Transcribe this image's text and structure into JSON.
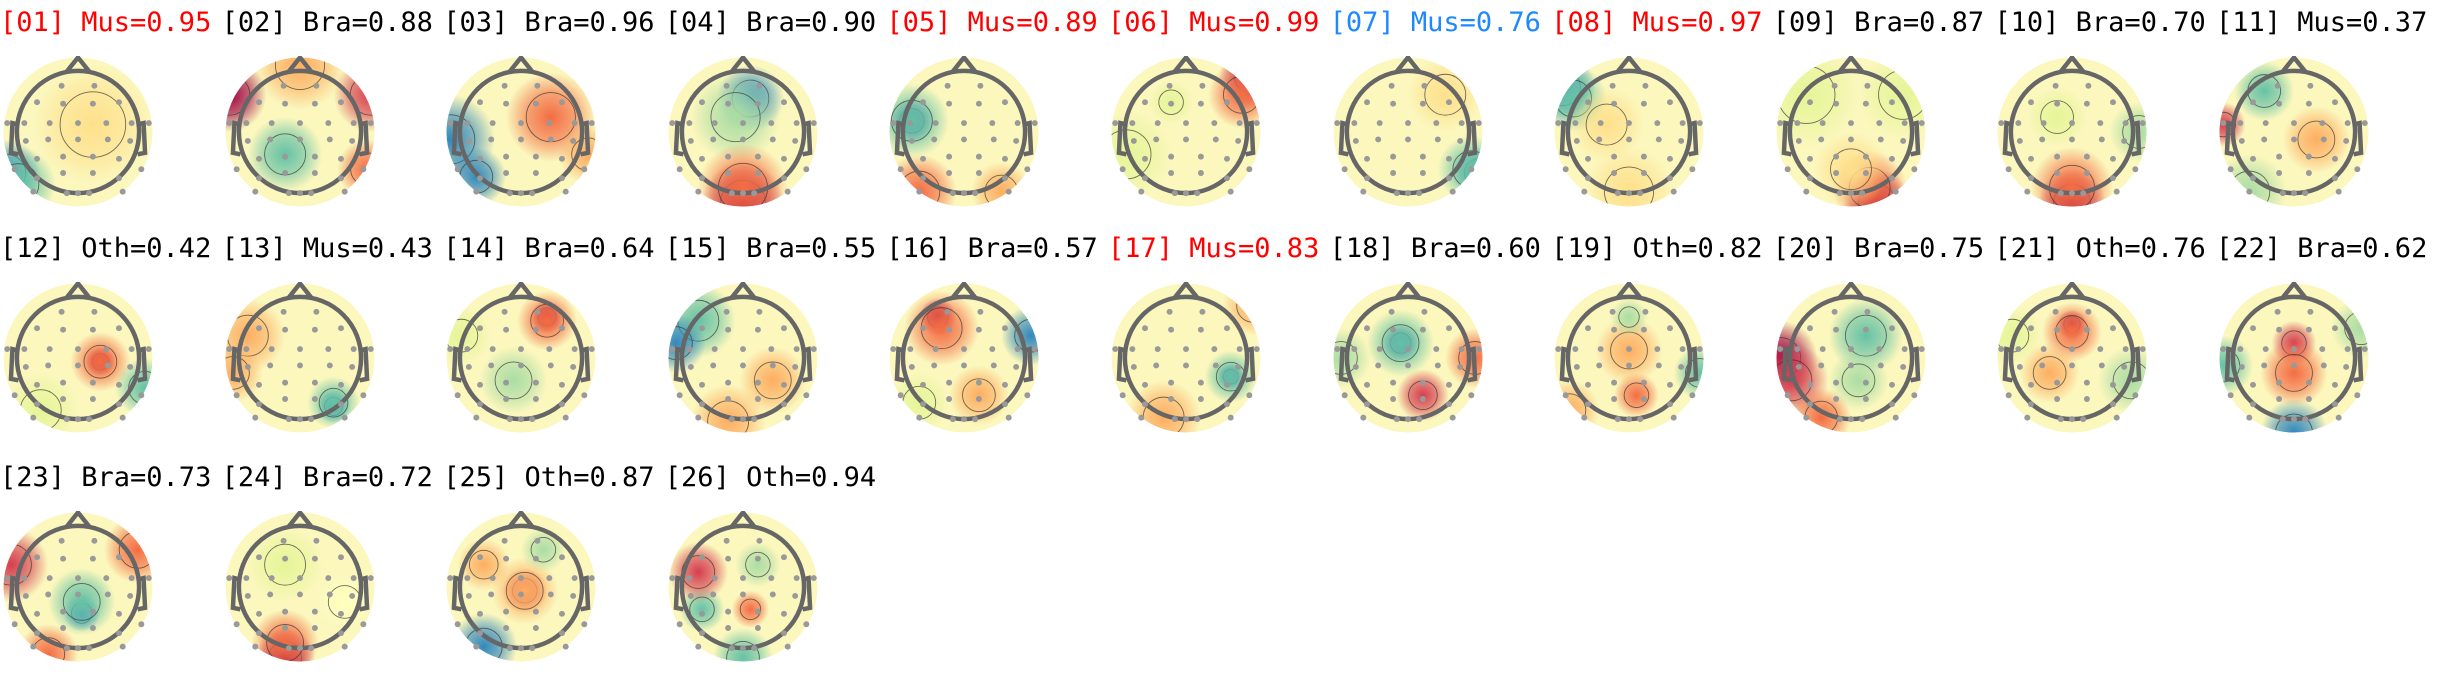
{
  "chart_data": {
    "type": "heatmap",
    "colormap": "Spectral",
    "components": [
      {
        "index": "01",
        "label": "Mus",
        "score": 0.95,
        "color": "#ff0000"
      },
      {
        "index": "02",
        "label": "Bra",
        "score": 0.88,
        "color": "#000000"
      },
      {
        "index": "03",
        "label": "Bra",
        "score": 0.96,
        "color": "#000000"
      },
      {
        "index": "04",
        "label": "Bra",
        "score": 0.9,
        "color": "#000000"
      },
      {
        "index": "05",
        "label": "Mus",
        "score": 0.89,
        "color": "#ff0000"
      },
      {
        "index": "06",
        "label": "Mus",
        "score": 0.99,
        "color": "#ff0000"
      },
      {
        "index": "07",
        "label": "Mus",
        "score": 0.76,
        "color": "#1e88ff"
      },
      {
        "index": "08",
        "label": "Mus",
        "score": 0.97,
        "color": "#ff0000"
      },
      {
        "index": "09",
        "label": "Bra",
        "score": 0.87,
        "color": "#000000"
      },
      {
        "index": "10",
        "label": "Bra",
        "score": 0.7,
        "color": "#000000"
      },
      {
        "index": "11",
        "label": "Mus",
        "score": 0.37,
        "color": "#000000"
      },
      {
        "index": "12",
        "label": "Oth",
        "score": 0.42,
        "color": "#000000"
      },
      {
        "index": "13",
        "label": "Mus",
        "score": 0.43,
        "color": "#000000"
      },
      {
        "index": "14",
        "label": "Bra",
        "score": 0.64,
        "color": "#000000"
      },
      {
        "index": "15",
        "label": "Bra",
        "score": 0.55,
        "color": "#000000"
      },
      {
        "index": "16",
        "label": "Bra",
        "score": 0.57,
        "color": "#000000"
      },
      {
        "index": "17",
        "label": "Mus",
        "score": 0.83,
        "color": "#ff0000"
      },
      {
        "index": "18",
        "label": "Bra",
        "score": 0.6,
        "color": "#000000"
      },
      {
        "index": "19",
        "label": "Oth",
        "score": 0.82,
        "color": "#000000"
      },
      {
        "index": "20",
        "label": "Bra",
        "score": 0.75,
        "color": "#000000"
      },
      {
        "index": "21",
        "label": "Oth",
        "score": 0.76,
        "color": "#000000"
      },
      {
        "index": "22",
        "label": "Bra",
        "score": 0.62,
        "color": "#000000"
      },
      {
        "index": "23",
        "label": "Bra",
        "score": 0.73,
        "color": "#000000"
      },
      {
        "index": "24",
        "label": "Bra",
        "score": 0.72,
        "color": "#000000"
      },
      {
        "index": "25",
        "label": "Oth",
        "score": 0.87,
        "color": "#000000"
      },
      {
        "index": "26",
        "label": "Oth",
        "score": 0.94,
        "color": "#000000"
      }
    ],
    "titles": [
      "[01] Mus=0.95",
      "[02] Bra=0.88",
      "[03] Bra=0.96",
      "[04] Bra=0.90",
      "[05] Mus=0.89",
      "[06] Mus=0.99",
      "[07] Mus=0.76",
      "[08] Mus=0.97",
      "[09] Bra=0.87",
      "[10] Bra=0.70",
      "[11] Mus=0.37",
      "[12] Oth=0.42",
      "[13] Mus=0.43",
      "[14] Bra=0.64",
      "[15] Bra=0.55",
      "[16] Bra=0.57",
      "[17] Mus=0.83",
      "[18] Bra=0.60",
      "[19] Oth=0.82",
      "[20] Bra=0.75",
      "[21] Oth=0.76",
      "[22] Bra=0.62",
      "[23] Bra=0.73",
      "[24] Bra=0.72",
      "[25] Oth=0.87",
      "[26] Oth=0.94"
    ]
  }
}
